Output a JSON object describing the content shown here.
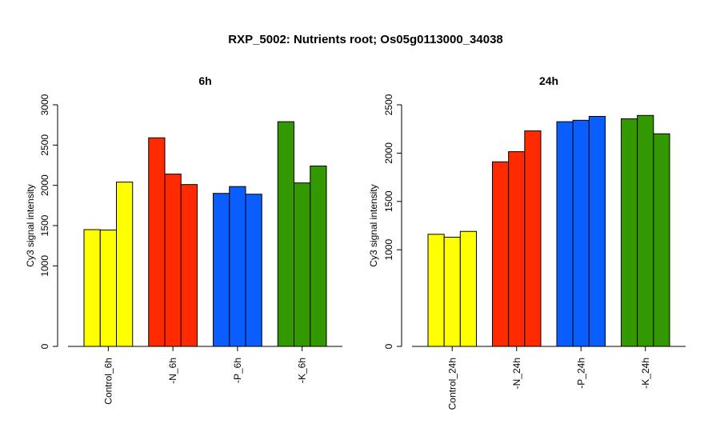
{
  "title": "RXP_5002: Nutrients root; Os05g0113000_34038",
  "chart_data": [
    {
      "type": "bar",
      "title": "6h",
      "ylabel": "Cy3 signal intensity",
      "ylim": [
        0,
        3000
      ],
      "yticks": [
        0,
        1000,
        1500,
        2000,
        2500,
        3000
      ],
      "groups": [
        {
          "label": "Control_6h",
          "color": "#FFFF00",
          "values": [
            1450,
            1445,
            2040
          ]
        },
        {
          "label": "-N_6h",
          "color": "#FF2A00",
          "values": [
            2590,
            2140,
            2010
          ]
        },
        {
          "label": "-P_6h",
          "color": "#0A5EFF",
          "values": [
            1900,
            1985,
            1890
          ]
        },
        {
          "label": "-K_6h",
          "color": "#339900",
          "values": [
            2790,
            2030,
            2240
          ]
        }
      ]
    },
    {
      "type": "bar",
      "title": "24h",
      "ylabel": "Cy3 signal intensity",
      "ylim": [
        0,
        2500
      ],
      "yticks": [
        0,
        1000,
        1500,
        2000,
        2500
      ],
      "groups": [
        {
          "label": "Control_24h",
          "color": "#FFFF00",
          "values": [
            1160,
            1130,
            1190
          ]
        },
        {
          "label": "-N_24h",
          "color": "#FF2A00",
          "values": [
            1910,
            2015,
            2230
          ]
        },
        {
          "label": "-P_24h",
          "color": "#0A5EFF",
          "values": [
            2325,
            2340,
            2380
          ]
        },
        {
          "label": "-K_24h",
          "color": "#339900",
          "values": [
            2355,
            2390,
            2200
          ]
        }
      ]
    }
  ]
}
